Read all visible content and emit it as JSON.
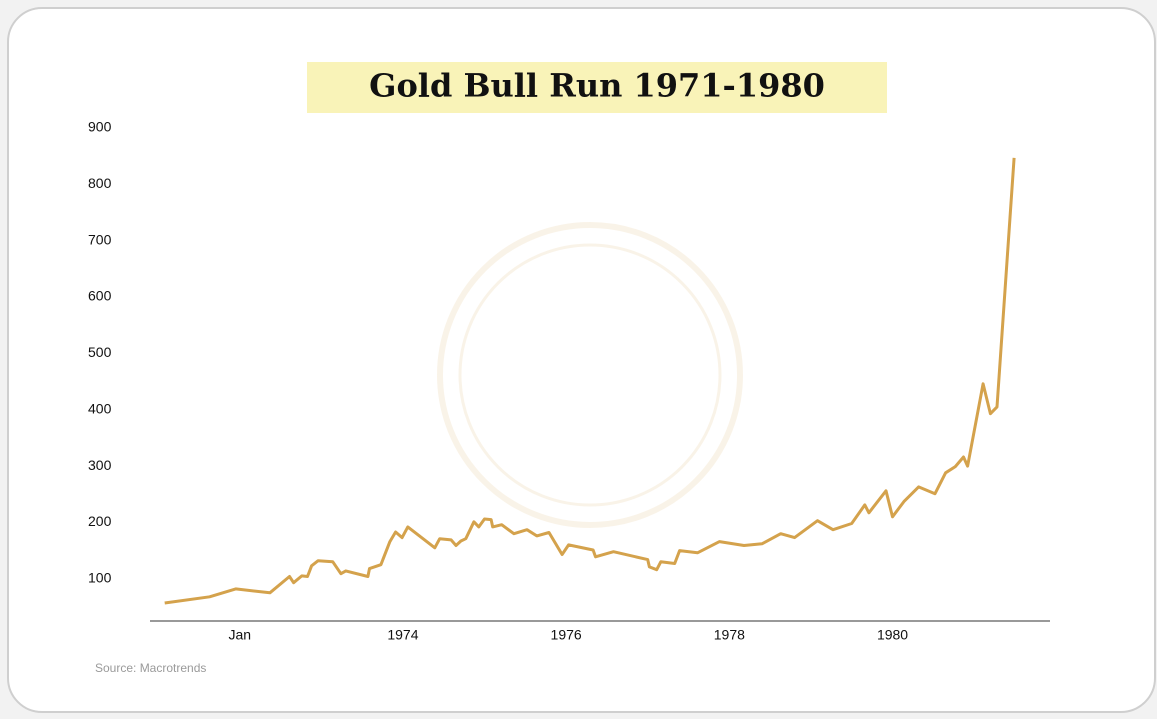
{
  "chart_data": {
    "type": "line",
    "title": "Gold Bull Run 1971-1980",
    "source": "Source: Macrotrends",
    "x": [
      1971.08,
      1971.63,
      1971.95,
      1972.37,
      1972.61,
      1972.66,
      1972.76,
      1972.83,
      1972.88,
      1972.96,
      1973.14,
      1973.24,
      1973.3,
      1973.57,
      1973.59,
      1973.73,
      1973.84,
      1973.91,
      1973.99,
      1974.06,
      1974.39,
      1974.45,
      1974.59,
      1974.65,
      1974.71,
      1974.77,
      1974.87,
      1974.93,
      1975.0,
      1975.08,
      1975.1,
      1975.21,
      1975.36,
      1975.52,
      1975.64,
      1975.79,
      1975.95,
      1976.03,
      1976.33,
      1976.36,
      1976.58,
      1977.0,
      1977.02,
      1977.11,
      1977.16,
      1977.33,
      1977.39,
      1977.61,
      1977.88,
      1978.18,
      1978.4,
      1978.63,
      1978.8,
      1979.08,
      1979.27,
      1979.5,
      1979.66,
      1979.71,
      1979.92,
      1980.0,
      1980.14,
      1980.32,
      1980.52,
      1980.65,
      1980.77,
      1980.87,
      1980.92,
      1981.11,
      1981.2,
      1981.28,
      1981.49
    ],
    "values": [
      57,
      68,
      82,
      75,
      104,
      93,
      105,
      104,
      123,
      132,
      130,
      109,
      114,
      104,
      118,
      125,
      166,
      183,
      173,
      192,
      155,
      171,
      169,
      159,
      167,
      171,
      201,
      192,
      206,
      205,
      192,
      196,
      180,
      187,
      176,
      182,
      143,
      160,
      151,
      139,
      148,
      134,
      121,
      116,
      130,
      127,
      150,
      146,
      166,
      159,
      162,
      180,
      173,
      203,
      187,
      198,
      231,
      217,
      256,
      210,
      237,
      263,
      251,
      288,
      299,
      316,
      300,
      446,
      393,
      405,
      847
    ],
    "color": "#d4a24c",
    "xlim": [
      1970.9,
      1981.93
    ],
    "xticks": [
      {
        "value": 1972,
        "label": "Jan"
      },
      1974,
      1976,
      1978,
      1980
    ],
    "ylim": [
      25,
      900
    ],
    "yticks": [
      100,
      200,
      300,
      400,
      500,
      600,
      700,
      800,
      900
    ],
    "grid": false
  }
}
